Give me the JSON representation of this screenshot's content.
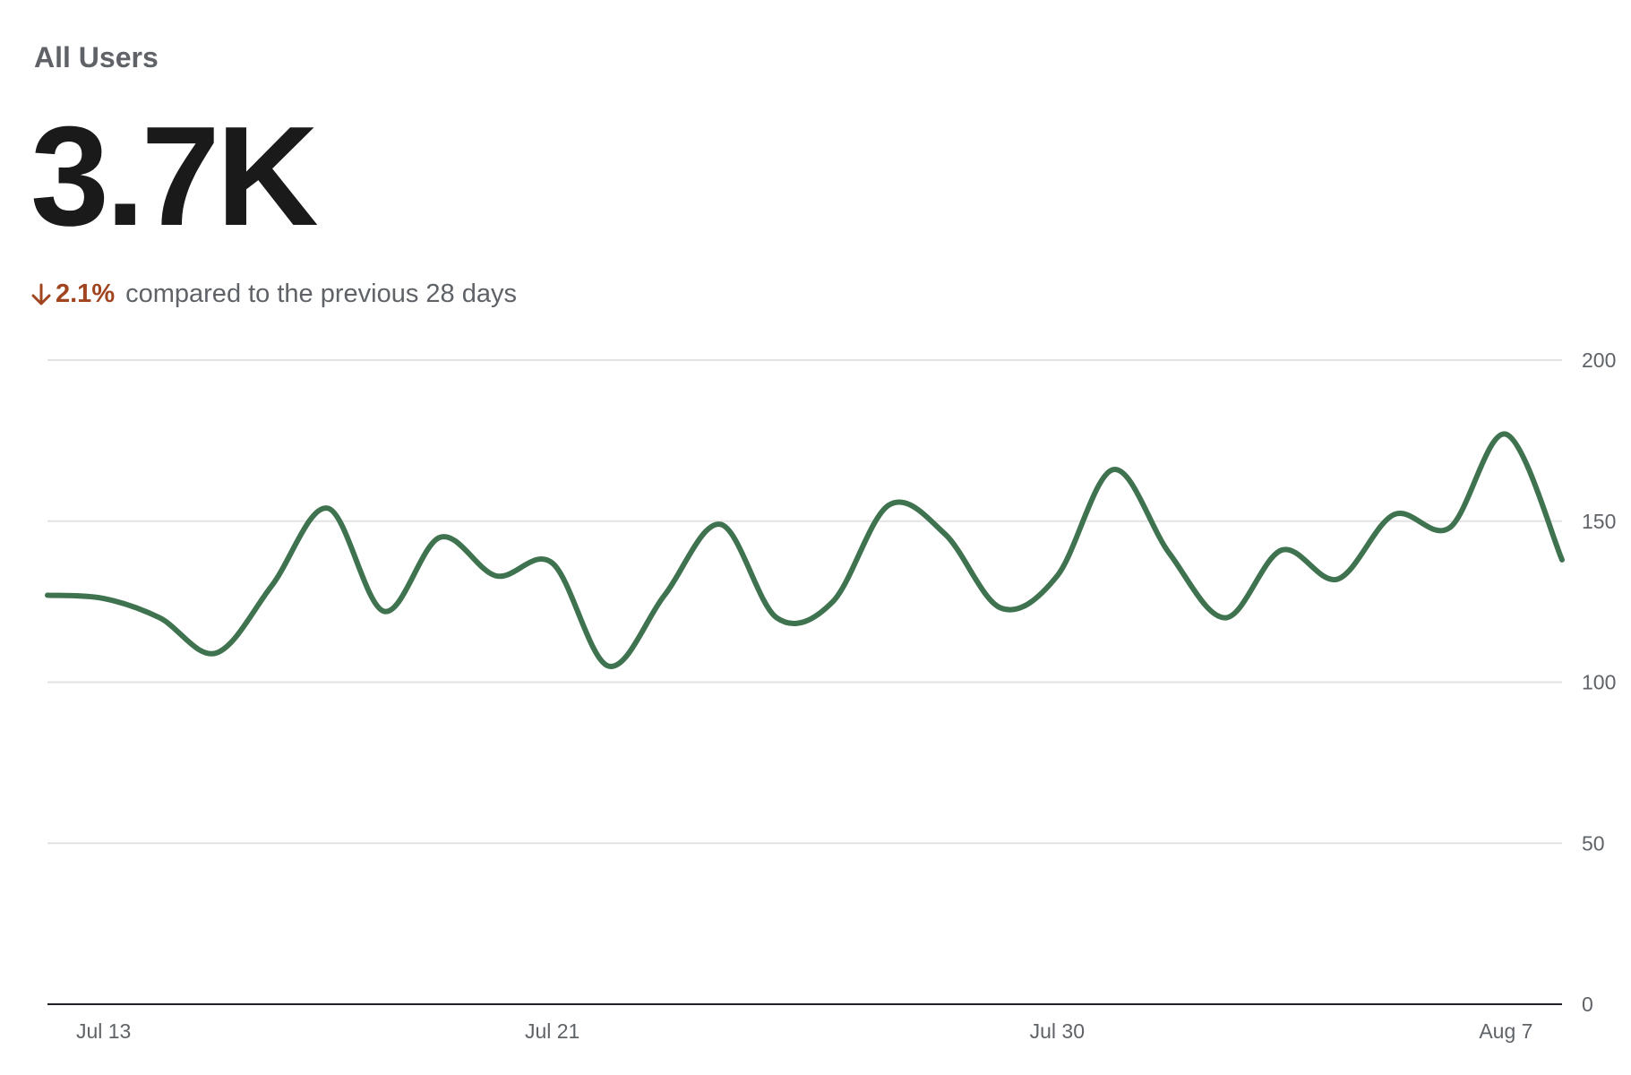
{
  "card": {
    "title": "All Users",
    "value": "3.7K",
    "delta": "2.1%",
    "delta_direction": "down",
    "comparison_text": "compared to the previous 28 days"
  },
  "colors": {
    "line": "#3f7350",
    "delta_negative": "#a0451f",
    "grid": "#e3e3e3",
    "baseline": "#202124",
    "label": "#5f6368",
    "title": "#5f6368",
    "value": "#1a1a1a"
  },
  "chart_data": {
    "type": "line",
    "title": "",
    "xlabel": "",
    "ylabel": "",
    "ylim": [
      0,
      200
    ],
    "y_ticks": [
      0,
      50,
      100,
      150,
      200
    ],
    "y_tick_labels": [
      "0",
      "50",
      "100",
      "150",
      "200"
    ],
    "x_tick_labels": [
      {
        "label": "Jul 13",
        "index": 1
      },
      {
        "label": "Jul 21",
        "index": 9
      },
      {
        "label": "Jul 30",
        "index": 18
      },
      {
        "label": "Aug 7",
        "index": 26
      }
    ],
    "grid": true,
    "axis_side": "right",
    "series": [
      {
        "values": [
          127,
          126,
          120,
          109,
          130,
          154,
          122,
          145,
          133,
          137,
          105,
          127,
          149,
          120,
          125,
          155,
          146,
          123,
          133,
          166,
          140,
          120,
          141,
          132,
          152,
          148,
          177,
          138
        ]
      }
    ]
  }
}
